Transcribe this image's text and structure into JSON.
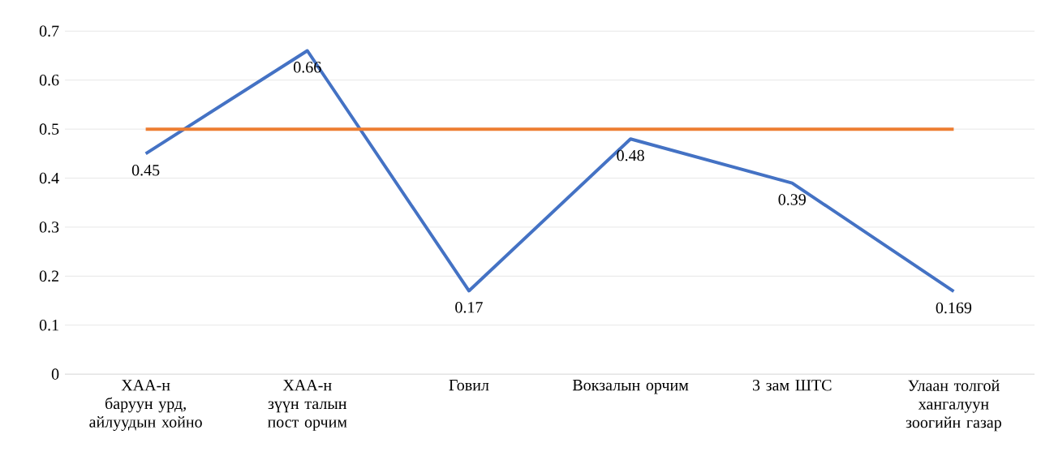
{
  "chart_data": {
    "type": "line",
    "categories": [
      "ХАА-н баруун урд, айлуудын хойно",
      "ХАА-н зүүн талын пост орчим",
      "Говил",
      "Вокзалын орчим",
      "3 зам ШТС",
      "Улаан толгой хангалуун зоогийн газар"
    ],
    "series": [
      {
        "color": "#4472c4",
        "values": [
          0.45,
          0.66,
          0.17,
          0.48,
          0.39,
          0.169
        ],
        "value_labels": [
          "0.45",
          "0.66",
          "0.17",
          "0.48",
          "0.39",
          "0.169"
        ]
      },
      {
        "color": "#ed7d31",
        "values": [
          0.5,
          0.5,
          0.5,
          0.5,
          0.5,
          0.5
        ]
      }
    ],
    "ylim": [
      0,
      0.7
    ],
    "yticks": [
      0,
      0.1,
      0.2,
      0.3,
      0.4,
      0.5,
      0.6,
      0.7
    ],
    "grid": "y",
    "marker": "none"
  }
}
